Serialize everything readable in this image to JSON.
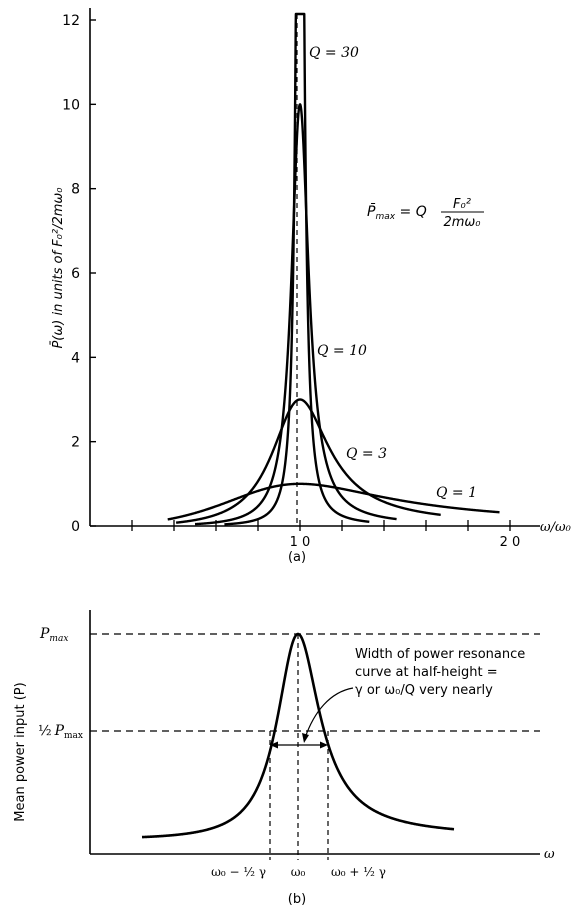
{
  "chart_data": [
    {
      "id": "a",
      "type": "line",
      "panel_label": "(a)",
      "ylabel": "P̄(ω) in units of F₀²/2mω₀",
      "xlabel": "ω/ω₀",
      "xlim": [
        0,
        2.1
      ],
      "ylim": [
        0,
        12.3
      ],
      "x_ticks": [
        {
          "value": 0.2
        },
        {
          "value": 0.4
        },
        {
          "value": 0.6
        },
        {
          "value": 0.8
        },
        {
          "value": 1.0,
          "label": "1 0"
        },
        {
          "value": 1.2
        },
        {
          "value": 1.4
        },
        {
          "value": 1.6
        },
        {
          "value": 1.8
        },
        {
          "value": 2.0,
          "label": "2 0"
        }
      ],
      "y_ticks": [
        {
          "value": 0,
          "label": "0"
        },
        {
          "value": 2,
          "label": "2"
        },
        {
          "value": 4,
          "label": "4"
        },
        {
          "value": 6,
          "label": "6"
        },
        {
          "value": 8,
          "label": "8"
        },
        {
          "value": 10,
          "label": "10"
        },
        {
          "value": 12,
          "label": "12"
        }
      ],
      "series": [
        {
          "name": "Q = 1",
          "Q": 1,
          "x_range": [
            0.37,
            1.95
          ]
        },
        {
          "name": "Q = 3",
          "Q": 3,
          "x_range": [
            0.41,
            1.67
          ]
        },
        {
          "name": "Q = 10",
          "Q": 10,
          "x_range": [
            0.5,
            1.46
          ]
        },
        {
          "name": "Q = 30",
          "Q": 30,
          "x_range": [
            0.64,
            1.33
          ]
        }
      ],
      "reference_line": {
        "x": 1.0,
        "style": "dashed"
      },
      "formula": {
        "lhs": "P̄",
        "lhs_sub": "max",
        "rhs_Q": "Q",
        "num": "F₀²",
        "den": "2mω₀"
      }
    },
    {
      "id": "b",
      "type": "line",
      "panel_label": "(b)",
      "ylabel": "Mean power input (P)",
      "xlabel": "ω",
      "Q": 4,
      "x_range": [
        0.25,
        1.75
      ],
      "xlim": [
        -0.05,
        2.25
      ],
      "ylim": [
        0,
        1.0
      ],
      "y_reference_labels": [
        {
          "value": 1.0,
          "text": "P",
          "sub": "max"
        },
        {
          "value": 0.5,
          "prefix": "½",
          "text": "P",
          "sub": "max"
        }
      ],
      "x_labels": [
        "ω₀ − ½ γ",
        "ω₀",
        "ω₀ + ½ γ"
      ],
      "annotation": [
        "Width of power resonance",
        "curve at half-height =",
        "γ or ω₀/Q very nearly"
      ]
    }
  ]
}
